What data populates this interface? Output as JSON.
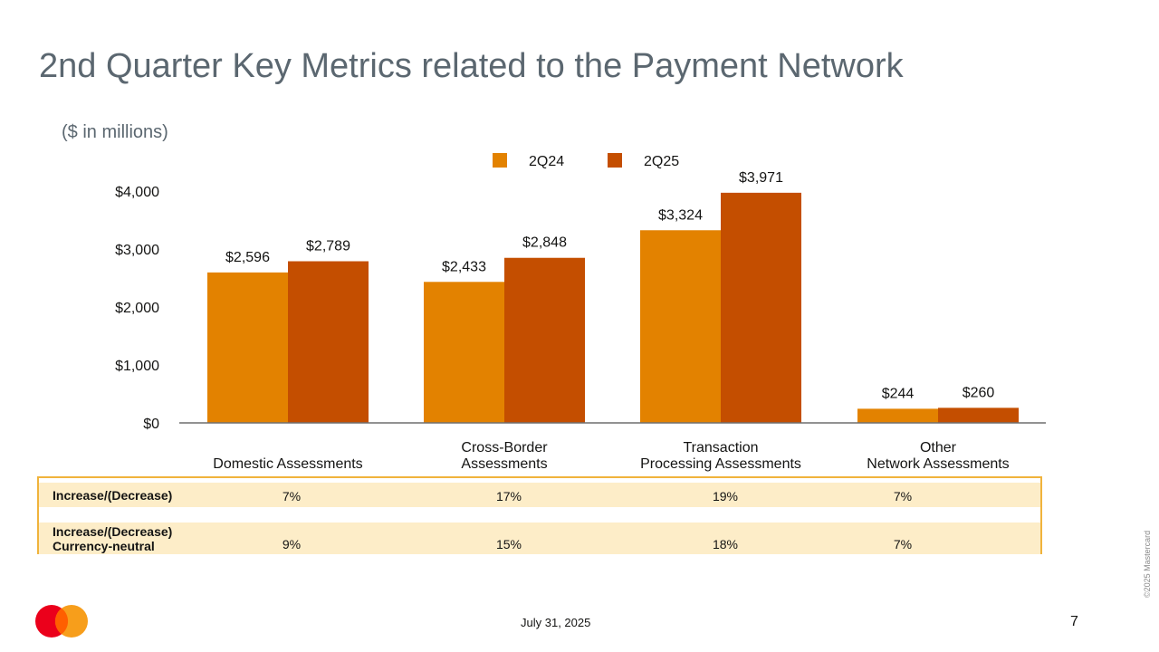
{
  "page": {
    "title": "2nd Quarter Key Metrics related to the Payment Network",
    "subtitle": "($ in millions)",
    "date": "July 31, 2025",
    "page_number": "7",
    "copyright": "©2025 Mastercard"
  },
  "colors": {
    "s2q24": "#e38200",
    "s2q25": "#c44e00",
    "axis": "#6f6f6f",
    "table_border": "#f0b33c",
    "table_fill": "#fdedc8"
  },
  "chart_data": {
    "type": "bar",
    "categories": [
      "Domestic Assessments",
      "Cross-Border\nAssessments",
      "Transaction\nProcessing Assessments",
      "Other\nNetwork Assessments"
    ],
    "series": [
      {
        "name": "2Q24",
        "values": [
          2596,
          2433,
          3324,
          244
        ],
        "labels": [
          "$2,596",
          "$2,433",
          "$3,324",
          "$244"
        ]
      },
      {
        "name": "2Q25",
        "values": [
          2789,
          2848,
          3971,
          260
        ],
        "labels": [
          "$2,789",
          "$2,848",
          "$3,971",
          "$260"
        ]
      }
    ],
    "ylim": [
      0,
      4000
    ],
    "yticks": [
      0,
      1000,
      2000,
      3000,
      4000
    ],
    "ytick_labels": [
      "$0",
      "$1,000",
      "$2,000",
      "$3,000",
      "$4,000"
    ],
    "legend": "top-center",
    "grid": false
  },
  "table": {
    "rows": [
      {
        "label": "Increase/(Decrease)",
        "values": [
          "7%",
          "17%",
          "19%",
          "7%"
        ]
      },
      {
        "label": "Increase/(Decrease)\nCurrency-neutral",
        "values": [
          "9%",
          "15%",
          "18%",
          "7%"
        ]
      }
    ]
  }
}
